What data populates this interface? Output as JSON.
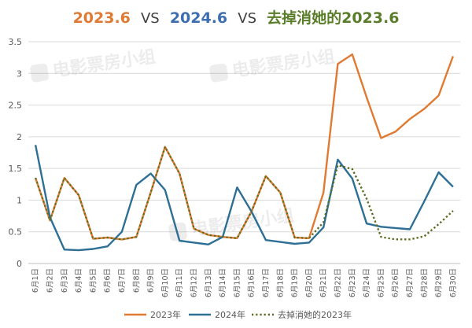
{
  "chart_data": {
    "type": "line",
    "title": {
      "part1": "2023.6",
      "vs1": "VS",
      "part2": "2024.6",
      "vs2": "VS",
      "part3": "去掉消她的2023.6"
    },
    "watermark": "电影票房小组",
    "categories": [
      "6月1日",
      "6月2日",
      "6月3日",
      "6月4日",
      "6月5日",
      "6月6日",
      "6月7日",
      "6月8日",
      "6月9日",
      "6月10日",
      "6月11日",
      "6月12日",
      "6月13日",
      "6月14日",
      "6月15日",
      "6月16日",
      "6月17日",
      "6月18日",
      "6月19日",
      "6月20日",
      "6月21日",
      "6月22日",
      "6月23日",
      "6月24日",
      "6月25日",
      "6月26日",
      "6月27日",
      "6月28日",
      "6月29日",
      "6月30日"
    ],
    "ylim": [
      0,
      3.5
    ],
    "yticks": [
      "0",
      "0.5",
      "1",
      "1.5",
      "2",
      "2.5",
      "3",
      "3.5"
    ],
    "grid": true,
    "legend_position": "bottom",
    "series": [
      {
        "name": "2023年",
        "color": "#e07a32",
        "style": "solid",
        "values": [
          1.35,
          0.68,
          1.35,
          1.08,
          0.39,
          0.41,
          0.38,
          0.42,
          1.12,
          1.84,
          1.42,
          0.55,
          0.45,
          0.42,
          0.4,
          0.82,
          1.38,
          1.12,
          0.41,
          0.4,
          1.12,
          3.15,
          3.3,
          2.62,
          1.98,
          2.08,
          2.28,
          2.44,
          2.65,
          3.27
        ]
      },
      {
        "name": "2024年",
        "color": "#2e6f96",
        "style": "solid",
        "values": [
          1.87,
          0.73,
          0.22,
          0.21,
          0.23,
          0.27,
          0.5,
          1.24,
          1.42,
          1.16,
          0.36,
          0.33,
          0.3,
          0.42,
          1.2,
          0.82,
          0.37,
          0.34,
          0.31,
          0.33,
          0.57,
          1.64,
          1.34,
          0.63,
          0.58,
          0.56,
          0.54,
          0.98,
          1.44,
          1.21
        ]
      },
      {
        "name": "去掉消她的2023年",
        "color": "#5a6e1f",
        "style": "dotted",
        "values": [
          1.35,
          0.68,
          1.35,
          1.08,
          0.39,
          0.41,
          0.38,
          0.42,
          1.12,
          1.84,
          1.42,
          0.55,
          0.45,
          0.42,
          0.4,
          0.82,
          1.38,
          1.12,
          0.41,
          0.4,
          0.65,
          1.55,
          1.49,
          1.02,
          0.42,
          0.38,
          0.38,
          0.43,
          0.62,
          0.83
        ]
      }
    ],
    "colors": {
      "title_2023": "#e07a32",
      "title_2024": "#3d6fb0",
      "title_removed": "#5a7d2a",
      "title_vs": "#404040",
      "grid": "#d9d9d9",
      "axis": "#bfbfbf"
    }
  }
}
